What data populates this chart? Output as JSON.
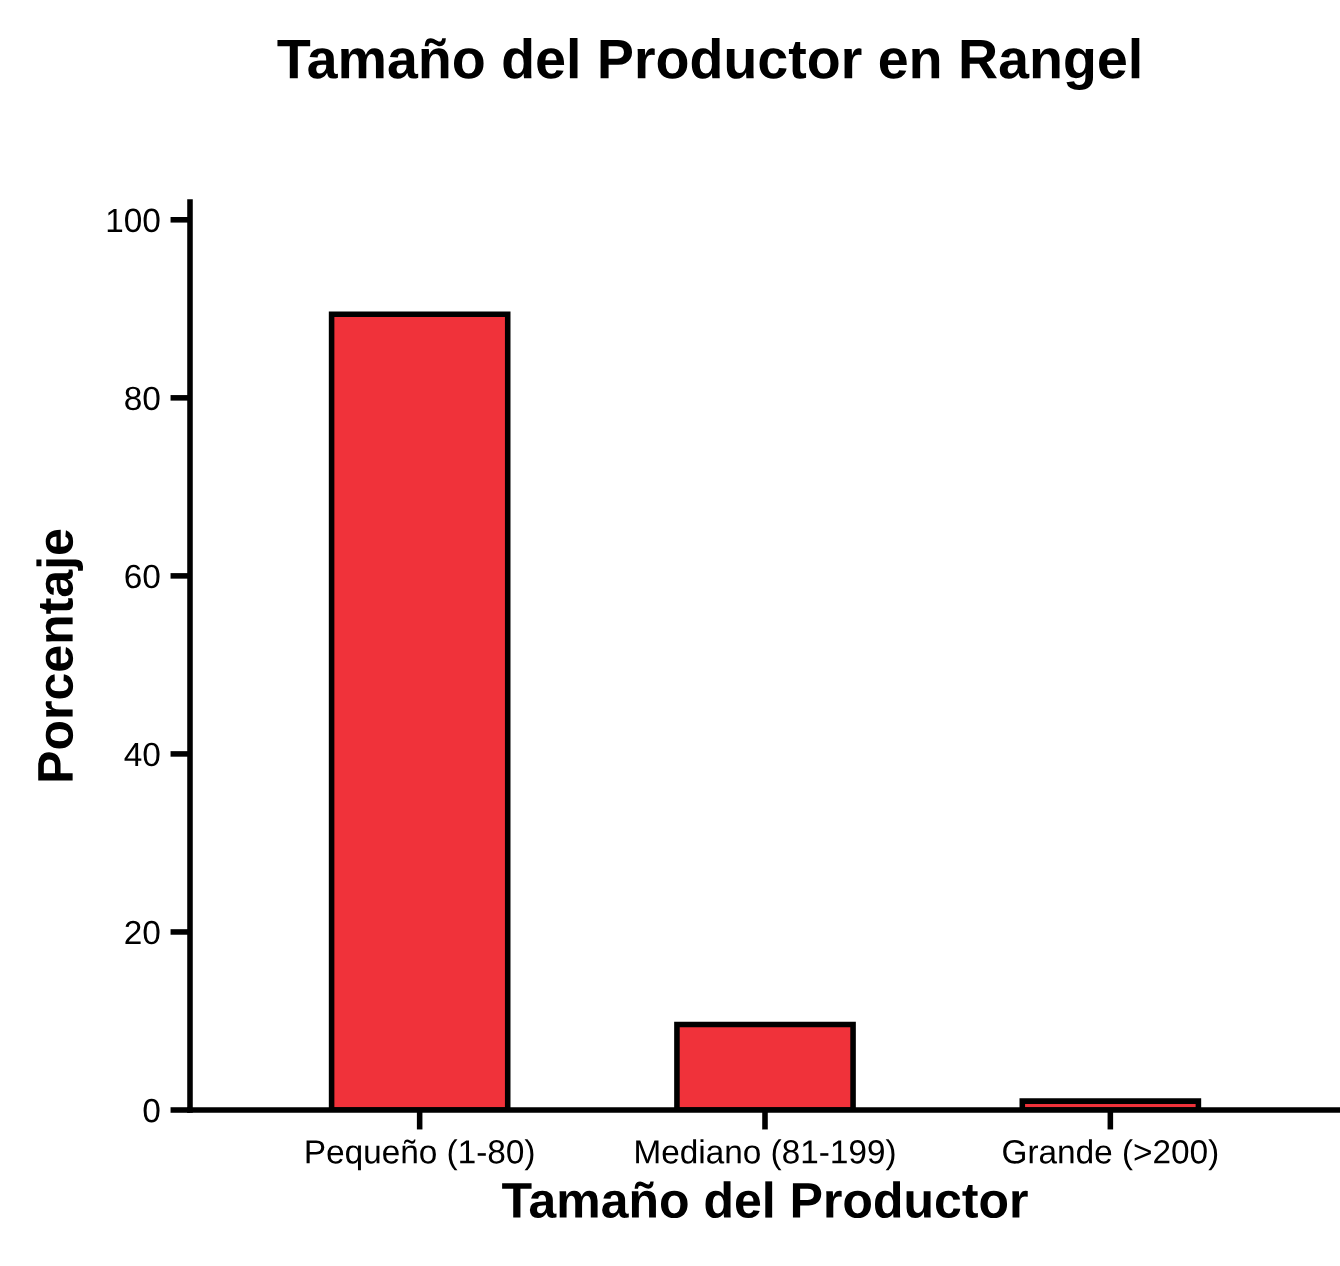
{
  "chart_data": {
    "type": "bar",
    "title": "Tamaño del Productor en Rangel",
    "xlabel": "Tamaño del Productor",
    "ylabel": "Porcentaje",
    "categories": [
      "Pequeño (1-80)",
      "Mediano (81-199)",
      "Grande (>200)"
    ],
    "values": [
      89.4,
      9.6,
      1.0
    ],
    "color": "#f0323a",
    "ylim": [
      0,
      102
    ],
    "yticks": [
      0,
      20,
      40,
      60,
      80,
      100
    ],
    "grid": false,
    "legend": false
  }
}
